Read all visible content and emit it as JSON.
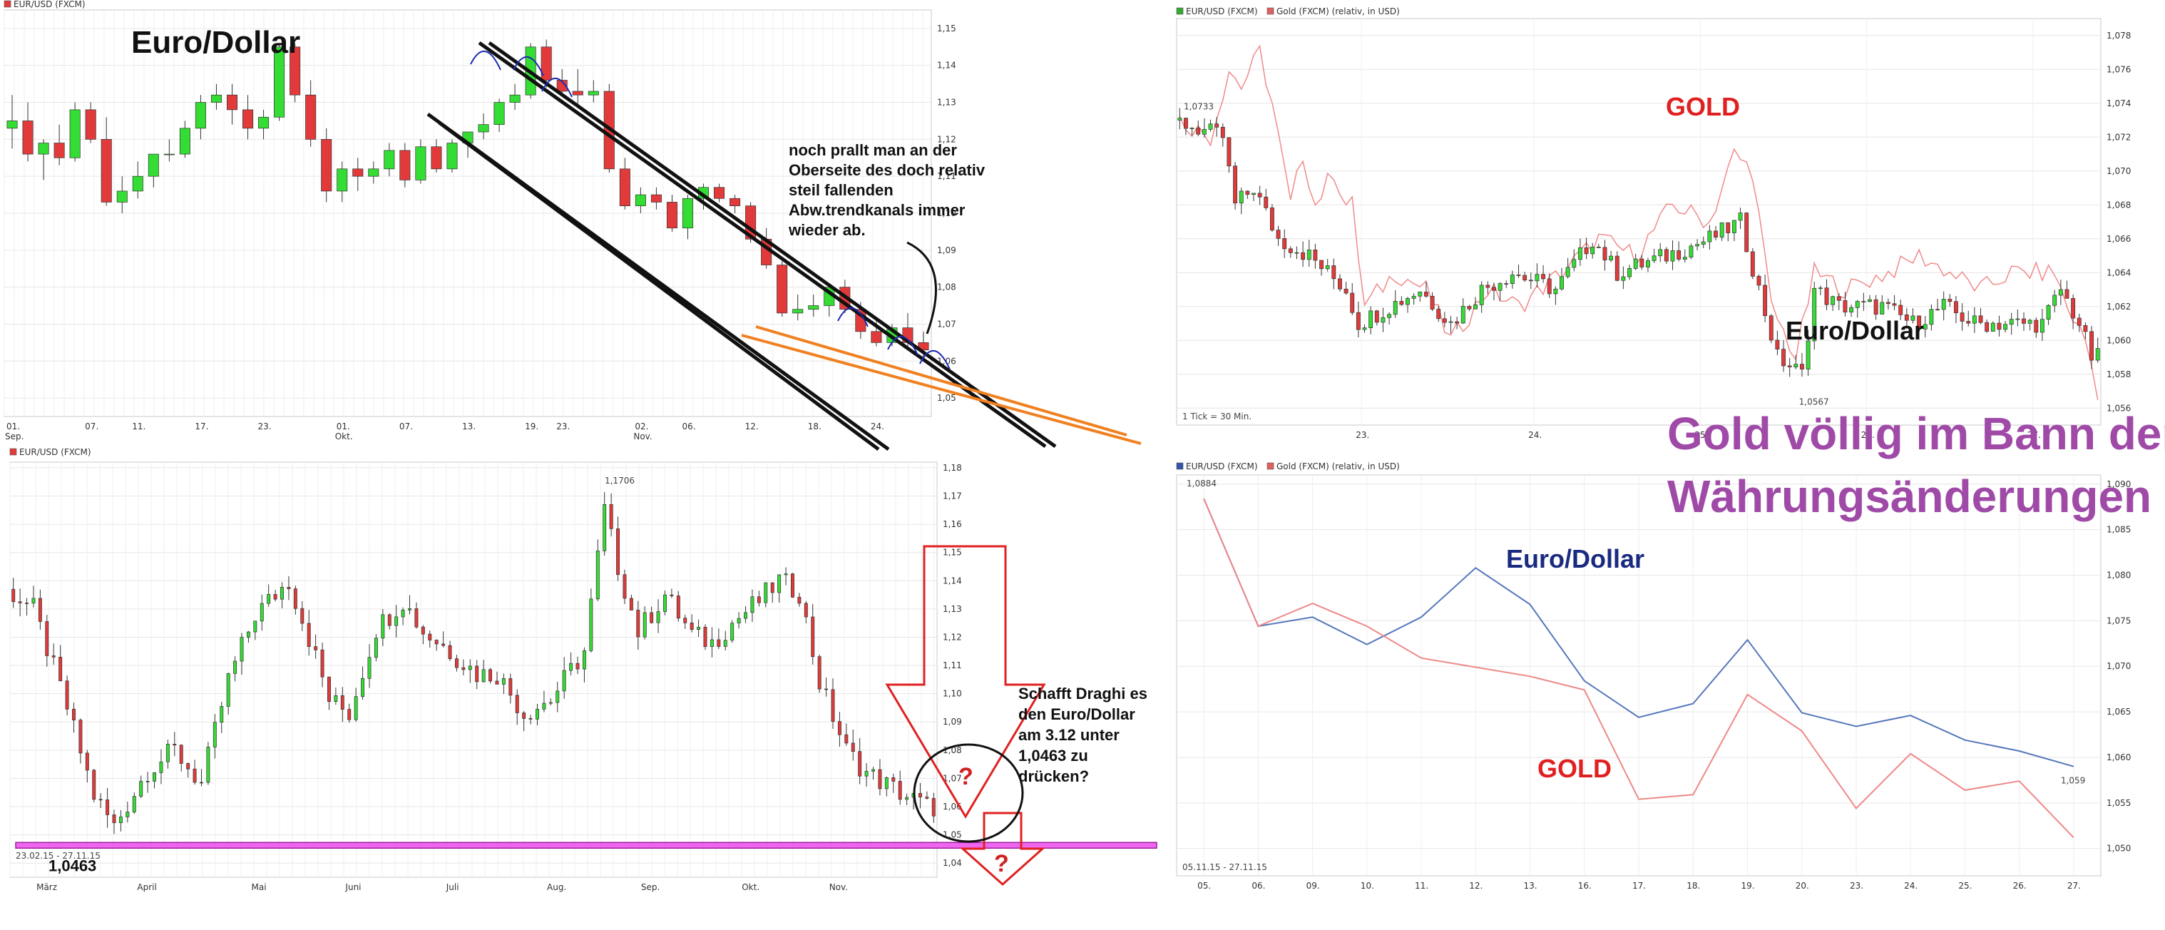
{
  "headline": {
    "line1": "Gold völlig im Bann der",
    "line2": "Währungsänderungen",
    "color": "#a04aa8"
  },
  "chart_data": [
    {
      "id": "p1",
      "type": "candlestick",
      "legend": [
        {
          "label": "EUR/USD (FXCM)",
          "color": "#e03a3a"
        }
      ],
      "title": "Euro/Dollar",
      "ylim": [
        1.045,
        1.155
      ],
      "yticks": [
        1.05,
        1.06,
        1.07,
        1.08,
        1.09,
        1.1,
        1.11,
        1.12,
        1.13,
        1.14,
        1.15
      ],
      "ytick_labels": [
        "1,05",
        "1,06",
        "1,07",
        "1,08",
        "1,09",
        "1,10",
        "1,11",
        "1,12",
        "1,13",
        "1,14",
        "1,15"
      ],
      "x_labels": [
        "01.",
        "07.",
        "11.",
        "17.",
        "23.",
        "01.",
        "07.",
        "13.",
        "19.",
        "23.",
        "02.",
        "06.",
        "12.",
        "18.",
        "24."
      ],
      "x_sublabels": [
        "Sep.",
        "",
        "",
        "",
        "",
        "Okt.",
        "",
        "",
        "",
        "",
        "Nov.",
        "",
        "",
        "",
        ""
      ],
      "x_label_idx": [
        0,
        5,
        8,
        12,
        16,
        21,
        25,
        29,
        33,
        35,
        40,
        43,
        47,
        51,
        55
      ],
      "n": 59,
      "ohlc": [
        [
          1.123,
          1.132,
          1.1175,
          1.125
        ],
        [
          1.125,
          1.13,
          1.114,
          1.116
        ],
        [
          1.116,
          1.12,
          1.109,
          1.119
        ],
        [
          1.119,
          1.124,
          1.113,
          1.115
        ],
        [
          1.115,
          1.13,
          1.114,
          1.128
        ],
        [
          1.128,
          1.13,
          1.119,
          1.12
        ],
        [
          1.12,
          1.126,
          1.102,
          1.103
        ],
        [
          1.103,
          1.11,
          1.1,
          1.106
        ],
        [
          1.106,
          1.114,
          1.104,
          1.11
        ],
        [
          1.11,
          1.116,
          1.107,
          1.116
        ],
        [
          1.116,
          1.12,
          1.114,
          1.116
        ],
        [
          1.116,
          1.125,
          1.115,
          1.123
        ],
        [
          1.123,
          1.132,
          1.12,
          1.13
        ],
        [
          1.13,
          1.135,
          1.128,
          1.132
        ],
        [
          1.132,
          1.135,
          1.124,
          1.128
        ],
        [
          1.128,
          1.132,
          1.12,
          1.123
        ],
        [
          1.123,
          1.128,
          1.12,
          1.126
        ],
        [
          1.126,
          1.146,
          1.125,
          1.145
        ],
        [
          1.145,
          1.146,
          1.13,
          1.132
        ],
        [
          1.132,
          1.136,
          1.118,
          1.12
        ],
        [
          1.12,
          1.123,
          1.103,
          1.106
        ],
        [
          1.106,
          1.114,
          1.103,
          1.112
        ],
        [
          1.112,
          1.115,
          1.106,
          1.11
        ],
        [
          1.11,
          1.114,
          1.108,
          1.112
        ],
        [
          1.112,
          1.119,
          1.11,
          1.117
        ],
        [
          1.117,
          1.119,
          1.107,
          1.109
        ],
        [
          1.109,
          1.12,
          1.108,
          1.118
        ],
        [
          1.118,
          1.12,
          1.111,
          1.112
        ],
        [
          1.112,
          1.12,
          1.111,
          1.119
        ],
        [
          1.119,
          1.122,
          1.115,
          1.122
        ],
        [
          1.122,
          1.127,
          1.12,
          1.124
        ],
        [
          1.124,
          1.131,
          1.122,
          1.13
        ],
        [
          1.13,
          1.135,
          1.128,
          1.132
        ],
        [
          1.132,
          1.146,
          1.131,
          1.145
        ],
        [
          1.145,
          1.147,
          1.134,
          1.136
        ],
        [
          1.136,
          1.139,
          1.132,
          1.133
        ],
        [
          1.133,
          1.139,
          1.129,
          1.132
        ],
        [
          1.132,
          1.136,
          1.13,
          1.133
        ],
        [
          1.133,
          1.135,
          1.111,
          1.112
        ],
        [
          1.112,
          1.115,
          1.101,
          1.102
        ],
        [
          1.102,
          1.107,
          1.1,
          1.105
        ],
        [
          1.105,
          1.107,
          1.101,
          1.103
        ],
        [
          1.103,
          1.105,
          1.095,
          1.096
        ],
        [
          1.096,
          1.105,
          1.093,
          1.104
        ],
        [
          1.104,
          1.108,
          1.101,
          1.107
        ],
        [
          1.107,
          1.108,
          1.103,
          1.104
        ],
        [
          1.104,
          1.105,
          1.1,
          1.102
        ],
        [
          1.102,
          1.103,
          1.092,
          1.093
        ],
        [
          1.093,
          1.096,
          1.085,
          1.086
        ],
        [
          1.086,
          1.087,
          1.072,
          1.073
        ],
        [
          1.073,
          1.078,
          1.071,
          1.074
        ],
        [
          1.074,
          1.078,
          1.072,
          1.075
        ],
        [
          1.075,
          1.08,
          1.072,
          1.08
        ],
        [
          1.08,
          1.082,
          1.073,
          1.074
        ],
        [
          1.074,
          1.076,
          1.066,
          1.068
        ],
        [
          1.068,
          1.071,
          1.064,
          1.065
        ],
        [
          1.065,
          1.07,
          1.064,
          1.069
        ],
        [
          1.069,
          1.073,
          1.064,
          1.065
        ],
        [
          1.065,
          1.068,
          1.061,
          1.063
        ]
      ],
      "annotation": "noch prallt man an der Oberseite des doch relativ steil fallenden Abw.trendkanals immer wieder ab."
    },
    {
      "id": "p2",
      "type": "candlestick",
      "legend": [
        {
          "label": "EUR/USD (FXCM)",
          "color": "#e03a3a"
        }
      ],
      "ylim": [
        1.035,
        1.182
      ],
      "yticks": [
        1.04,
        1.05,
        1.06,
        1.07,
        1.08,
        1.09,
        1.1,
        1.11,
        1.12,
        1.13,
        1.14,
        1.15,
        1.16,
        1.17,
        1.18
      ],
      "ytick_labels": [
        "1,04",
        "1,05",
        "1,06",
        "1,07",
        "1,08",
        "1,09",
        "1,10",
        "1,11",
        "1,12",
        "1,13",
        "1,14",
        "1,15",
        "1,16",
        "1,17",
        "1,18"
      ],
      "x_labels": [
        "März",
        "April",
        "Mai",
        "Juni",
        "Juli",
        "Aug.",
        "Sep.",
        "Okt.",
        "Nov."
      ],
      "x_label_idx": [
        5,
        20,
        37,
        51,
        66,
        81,
        95,
        110,
        123
      ],
      "n": 138,
      "control_points": [
        [
          0,
          1.137
        ],
        [
          4,
          1.13
        ],
        [
          9,
          1.095
        ],
        [
          13,
          1.064
        ],
        [
          16,
          1.053
        ],
        [
          21,
          1.073
        ],
        [
          25,
          1.08
        ],
        [
          29,
          1.068
        ],
        [
          33,
          1.105
        ],
        [
          37,
          1.128
        ],
        [
          42,
          1.14
        ],
        [
          46,
          1.113
        ],
        [
          48,
          1.098
        ],
        [
          51,
          1.093
        ],
        [
          55,
          1.123
        ],
        [
          59,
          1.133
        ],
        [
          62,
          1.122
        ],
        [
          65,
          1.117
        ],
        [
          70,
          1.107
        ],
        [
          73,
          1.107
        ],
        [
          77,
          1.093
        ],
        [
          81,
          1.098
        ],
        [
          86,
          1.115
        ],
        [
          89,
          1.165
        ],
        [
          91,
          1.145
        ],
        [
          94,
          1.122
        ],
        [
          98,
          1.135
        ],
        [
          102,
          1.121
        ],
        [
          105,
          1.118
        ],
        [
          108,
          1.125
        ],
        [
          112,
          1.133
        ],
        [
          115,
          1.14
        ],
        [
          118,
          1.136
        ],
        [
          121,
          1.104
        ],
        [
          125,
          1.08
        ],
        [
          128,
          1.072
        ],
        [
          133,
          1.065
        ],
        [
          137,
          1.06
        ]
      ],
      "high_label": "1,1706",
      "low_value_label": "1,0463",
      "support_level": 1.0463,
      "date_range": "23.02.15 - 27.11.15",
      "annotation": "Schafft Draghi es den Euro/Dollar am 3.12 unter 1,0463 zu drücken?",
      "question_mark": "?"
    },
    {
      "id": "p3",
      "type": "candlestick+line",
      "legend": [
        {
          "label": "EUR/USD (FXCM)",
          "color": "#33aa33"
        },
        {
          "label": "Gold (FXCM) (relativ, in USD)",
          "color": "#e06060"
        }
      ],
      "ylim": [
        1.055,
        1.079
      ],
      "yticks": [
        1.056,
        1.058,
        1.06,
        1.062,
        1.064,
        1.066,
        1.068,
        1.07,
        1.072,
        1.074,
        1.076,
        1.078
      ],
      "ytick_labels": [
        "1,056",
        "1,058",
        "1,060",
        "1,062",
        "1,064",
        "1,066",
        "1,068",
        "1,070",
        "1,072",
        "1,074",
        "1,076",
        "1,078"
      ],
      "x_labels": [
        "23.",
        "24.",
        "25.",
        "26.",
        "27."
      ],
      "x_label_idx": [
        30,
        58,
        85,
        112,
        139
      ],
      "n": 150,
      "eur_points": [
        [
          0,
          1.073
        ],
        [
          8,
          1.072
        ],
        [
          10,
          1.068
        ],
        [
          13,
          1.069
        ],
        [
          17,
          1.066
        ],
        [
          22,
          1.065
        ],
        [
          28,
          1.063
        ],
        [
          30,
          1.061
        ],
        [
          35,
          1.062
        ],
        [
          40,
          1.063
        ],
        [
          45,
          1.061
        ],
        [
          50,
          1.063
        ],
        [
          55,
          1.064
        ],
        [
          62,
          1.063
        ],
        [
          68,
          1.066
        ],
        [
          72,
          1.064
        ],
        [
          80,
          1.065
        ],
        [
          87,
          1.066
        ],
        [
          92,
          1.067
        ],
        [
          95,
          1.063
        ],
        [
          98,
          1.059
        ],
        [
          102,
          1.058
        ],
        [
          104,
          1.063
        ],
        [
          108,
          1.062
        ],
        [
          115,
          1.062
        ],
        [
          120,
          1.061
        ],
        [
          125,
          1.062
        ],
        [
          130,
          1.061
        ],
        [
          135,
          1.061
        ],
        [
          141,
          1.061
        ],
        [
          144,
          1.063
        ],
        [
          147,
          1.061
        ],
        [
          149,
          1.059
        ]
      ],
      "gold_points": [
        [
          0,
          1.073
        ],
        [
          5,
          1.072
        ],
        [
          8,
          1.076
        ],
        [
          10,
          1.075
        ],
        [
          13,
          1.077
        ],
        [
          15,
          1.074
        ],
        [
          18,
          1.068
        ],
        [
          20,
          1.071
        ],
        [
          22,
          1.068
        ],
        [
          25,
          1.07
        ],
        [
          27,
          1.068
        ],
        [
          28,
          1.068
        ],
        [
          30,
          1.062
        ],
        [
          35,
          1.064
        ],
        [
          40,
          1.063
        ],
        [
          44,
          1.06
        ],
        [
          50,
          1.063
        ],
        [
          55,
          1.062
        ],
        [
          62,
          1.064
        ],
        [
          68,
          1.066
        ],
        [
          74,
          1.065
        ],
        [
          80,
          1.068
        ],
        [
          86,
          1.067
        ],
        [
          90,
          1.071
        ],
        [
          93,
          1.07
        ],
        [
          96,
          1.062
        ],
        [
          100,
          1.059
        ],
        [
          103,
          1.064
        ],
        [
          108,
          1.063
        ],
        [
          115,
          1.064
        ],
        [
          120,
          1.065
        ],
        [
          125,
          1.064
        ],
        [
          130,
          1.063
        ],
        [
          135,
          1.064
        ],
        [
          142,
          1.064
        ],
        [
          144,
          1.062
        ],
        [
          147,
          1.06
        ],
        [
          149,
          1.057
        ]
      ],
      "start_label": "1,0733",
      "low_label": "1,0567",
      "tick_note": "1 Tick = 30 Min.",
      "gold_text": "GOLD",
      "eur_text": "Euro/Dollar"
    },
    {
      "id": "p4",
      "type": "line",
      "legend": [
        {
          "label": "EUR/USD (FXCM)",
          "color": "#3355aa"
        },
        {
          "label": "Gold (FXCM) (relativ, in USD)",
          "color": "#e06060"
        }
      ],
      "ylim": [
        1.047,
        1.091
      ],
      "yticks": [
        1.05,
        1.055,
        1.06,
        1.065,
        1.07,
        1.075,
        1.08,
        1.085,
        1.09
      ],
      "ytick_labels": [
        "1,050",
        "1,055",
        "1,060",
        "1,065",
        "1,070",
        "1,075",
        "1,080",
        "1,085",
        "1,090"
      ],
      "categories": [
        "05.",
        "06.",
        "09.",
        "10.",
        "11.",
        "12.",
        "13.",
        "16.",
        "17.",
        "18.",
        "19.",
        "20.",
        "23.",
        "24.",
        "25.",
        "26.",
        "27."
      ],
      "series": [
        {
          "name": "EUR/USD (FXCM)",
          "color": "#5577bb",
          "values": [
            1.0884,
            1.0744,
            1.0754,
            1.0724,
            1.0754,
            1.0808,
            1.0768,
            1.0684,
            1.0644,
            1.0659,
            1.0729,
            1.0649,
            1.0634,
            1.0646,
            1.0619,
            1.0607,
            1.059
          ]
        },
        {
          "name": "Gold (FXCM) (relativ, in USD)",
          "color": "#ee8888",
          "values": [
            1.0884,
            1.0744,
            1.0769,
            1.0744,
            1.0709,
            1.0699,
            1.0689,
            1.0674,
            1.0554,
            1.0559,
            1.0669,
            1.0629,
            1.0544,
            1.0604,
            1.0564,
            1.0574,
            1.0512
          ]
        }
      ],
      "start_label": "1,0884",
      "end_label": "1,059",
      "date_range": "05.11.15 - 27.11.15",
      "eur_text": "Euro/Dollar",
      "gold_text": "GOLD"
    }
  ]
}
